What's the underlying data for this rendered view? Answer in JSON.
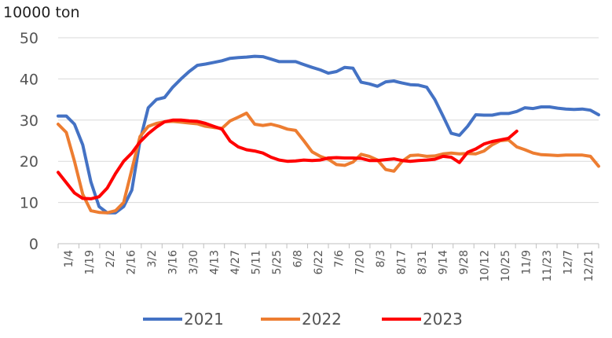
{
  "chart_data": {
    "type": "line",
    "unit_label": "10000 ton",
    "ylim": [
      0,
      50
    ],
    "yticks": [
      0,
      10,
      20,
      30,
      40,
      50
    ],
    "grid": true,
    "legend_position": "bottom",
    "x_tick_labels": [
      "1/4",
      "1/19",
      "2/2",
      "2/16",
      "3/2",
      "3/16",
      "3/30",
      "4/13",
      "4/27",
      "5/11",
      "5/25",
      "6/8",
      "6/22",
      "7/6",
      "7/20",
      "8/3",
      "8/17",
      "8/31",
      "9/14",
      "9/28",
      "10/12",
      "10/25",
      "11/9",
      "11/23",
      "12/7",
      "12/21"
    ],
    "series": [
      {
        "name": "2021",
        "color": "#4472C4",
        "values": [
          31,
          31,
          29,
          24,
          15,
          9,
          7.5,
          7.5,
          9,
          13,
          25,
          33,
          35,
          35.5,
          38,
          40,
          41.8,
          43.3,
          43.6,
          44,
          44.4,
          45,
          45.2,
          45.3,
          45.5,
          45.4,
          44.8,
          44.2,
          44.2,
          44.2,
          43.5,
          42.8,
          42.2,
          41.4,
          41.8,
          42.8,
          42.6,
          39.2,
          38.8,
          38.2,
          39.3,
          39.5,
          39,
          38.6,
          38.5,
          38,
          35,
          31,
          26.8,
          26.3,
          28.5,
          31.3,
          31.2,
          31.2,
          31.6,
          31.6,
          32.1,
          33,
          32.8,
          33.2,
          33.2,
          32.9,
          32.7,
          32.6,
          32.7,
          32.4,
          31.3
        ]
      },
      {
        "name": "2022",
        "color": "#ED7D31",
        "values": [
          29,
          27,
          20,
          12,
          8,
          7.6,
          7.5,
          8,
          10,
          18,
          26,
          28.5,
          29.2,
          29.6,
          29.7,
          29.5,
          29.3,
          29.1,
          28.5,
          28.2,
          28,
          29.8,
          30.7,
          31.7,
          29,
          28.7,
          29,
          28.5,
          27.8,
          27.5,
          25,
          22.3,
          21.2,
          20.5,
          19.2,
          19,
          19.8,
          21.7,
          21.2,
          20.3,
          18,
          17.6,
          20,
          21.4,
          21.5,
          21.2,
          21.3,
          21.8,
          22,
          21.8,
          21.9,
          21.8,
          22.5,
          24,
          25,
          25.2,
          23.5,
          22.8,
          22,
          21.6,
          21.5,
          21.4,
          21.5,
          21.5,
          21.5,
          21.2,
          18.8
        ]
      },
      {
        "name": "2023",
        "color": "#FF0000",
        "values": [
          17.3,
          14.8,
          12.3,
          11,
          10.9,
          11.4,
          13.5,
          17,
          20,
          22,
          24.7,
          26.7,
          28.3,
          29.6,
          30,
          30,
          29.8,
          29.7,
          29.2,
          28.5,
          27.8,
          24.9,
          23.5,
          22.8,
          22.5,
          22,
          21,
          20.3,
          20,
          20.1,
          20.3,
          20.2,
          20.3,
          20.8,
          20.9,
          20.8,
          20.8,
          20.7,
          20.2,
          20.2,
          20.4,
          20.6,
          20.2,
          20,
          20.2,
          20.3,
          20.5,
          21.2,
          21,
          19.7,
          22.2,
          23,
          24.2,
          24.8,
          25.2,
          25.6,
          27.3
        ]
      }
    ]
  }
}
